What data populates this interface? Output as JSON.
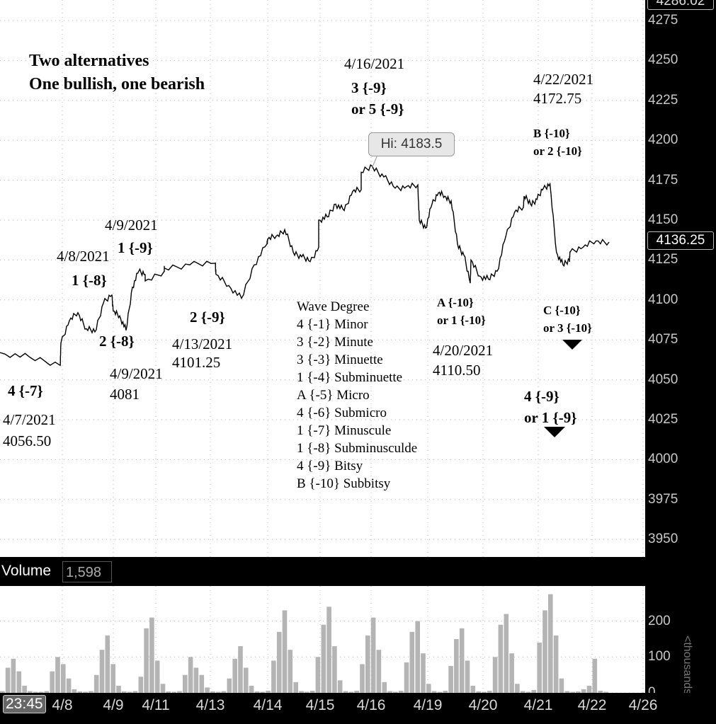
{
  "annotations": {
    "title_line1": "Two alternatives",
    "title_line2": "One bullish, one bearish",
    "top_date_4_16": "4/16/2021",
    "wave_3_9": "3 {-9}",
    "wave_or5_9": "or 5 {-9}",
    "date_4_22": "4/22/2021",
    "price_4_22": "4172.75",
    "wave_B_10": "B {-10}",
    "wave_or2_10": "or 2 {-10}",
    "date_4_9_top": "4/9/2021",
    "wave_1_9": "1 {-9}",
    "date_4_8": "4/8/2021",
    "wave_1_8": "1 {-8}",
    "wave_2_8": "2 {-8}",
    "wave_2_9": "2 {-9}",
    "date_4_13": "4/13/2021",
    "price_4_13": "4101.25",
    "date_4_9_low": "4/9/2021",
    "price_4_9_low": "4081",
    "wave_4_7": "4 {-7}",
    "date_4_7": "4/7/2021",
    "price_4_7": "4056.50",
    "wave_A_10": "A {-10}",
    "wave_or1_10": "or 1 {-10}",
    "date_4_20": "4/20/2021",
    "price_4_20": "4110.50",
    "wave_C_10": "C {-10}",
    "wave_or3_10": "or 3 {-10}",
    "wave_4_9": "4 {-9}",
    "wave_or1_9": "or 1 {-9}",
    "wave_degree_title": "Wave Degree",
    "wave_degree_rows": [
      "4 {-1} Minor",
      "3 {-2} Minute",
      "3 {-3} Minuette",
      "1 {-4} Subminuette",
      "A {-5} Micro",
      "4 {-6} Submicro",
      "1 {-7} Minuscule",
      "1 {-8} Subminusculde",
      "4 {-9} Bitsy",
      "B {-10} Subbitsy"
    ]
  },
  "hi_callout": "Hi: 4183.5",
  "last_price": "4136.25",
  "top_price": "4286.02",
  "volume_label": "Volume",
  "volume_value": "1,598",
  "volume_units": "<thousands>",
  "time_label": "23:45",
  "colors": {
    "price_line": "#000000",
    "volume_bar": "#b4b4b4",
    "background": "#ffffff",
    "marker": "#000000"
  },
  "chart_data": [
    {
      "type": "line",
      "title": "",
      "ylim": [
        3937,
        4286
      ],
      "y_ticks": [
        4275,
        4250,
        4225,
        4200,
        4175,
        4150,
        4125,
        4100,
        4075,
        4050,
        4025,
        4000,
        3975,
        3950
      ],
      "x_ticks": [
        "4/8",
        "4/9",
        "4/11",
        "4/13",
        "4/14",
        "4/15",
        "4/16",
        "4/19",
        "4/20",
        "4/21",
        "4/22",
        "4/26"
      ],
      "grid": true,
      "series": [
        {
          "x": [
            "4/7",
            "4/7",
            "4/7",
            "4/8",
            "4/8",
            "4/8",
            "4/8",
            "4/8",
            "4/8",
            "4/8",
            "4/9",
            "4/9",
            "4/9",
            "4/9",
            "4/9",
            "4/9",
            "4/11",
            "4/11",
            "4/12",
            "4/12",
            "4/12",
            "4/13",
            "4/13",
            "4/13",
            "4/13",
            "4/13",
            "4/14",
            "4/14",
            "4/14",
            "4/14",
            "4/14",
            "4/14",
            "4/14",
            "4/15",
            "4/15",
            "4/15",
            "4/15",
            "4/15",
            "4/15",
            "4/16",
            "4/16",
            "4/16",
            "4/16",
            "4/16",
            "4/16",
            "4/19",
            "4/19",
            "4/19",
            "4/19",
            "4/19",
            "4/19",
            "4/19",
            "4/19",
            "4/19",
            "4/20",
            "4/20",
            "4/20",
            "4/20",
            "4/20",
            "4/20",
            "4/20",
            "4/21",
            "4/21",
            "4/21",
            "4/21",
            "4/21",
            "4/21",
            "4/21",
            "4/21",
            "4/22",
            "4/22",
            "4/22",
            "4/22"
          ],
          "values": [
            4067,
            4064,
            4059,
            4073,
            4087,
            4092,
            4082,
            4080,
            4098,
            4103,
            4093,
            4090,
            4081,
            4108,
            4118,
            4116,
            4112,
            4118,
            4120,
            4122,
            4123,
            4116,
            4109,
            4101,
            4122,
            4135,
            4138,
            4140,
            4144,
            4130,
            4127,
            4124,
            4133,
            4150,
            4152,
            4160,
            4156,
            4168,
            4169,
            4180,
            4183.5,
            4177,
            4170,
            4171,
            4172,
            4150,
            4145,
            4160,
            4167,
            4165,
            4162,
            4135,
            4128,
            4110.5,
            4125,
            4115,
            4113,
            4118,
            4140,
            4155,
            4158,
            4165,
            4160,
            4163,
            4170,
            4172.75,
            4130,
            4122,
            4125,
            4130,
            4133,
            4137,
            4136.25
          ]
        }
      ],
      "annotations": [
        "Hi: 4183.5"
      ]
    },
    {
      "type": "bar",
      "title": "Volume",
      "ylabel": "<thousands>",
      "ylim": [
        0,
        290
      ],
      "y_ticks": [
        200,
        100,
        0
      ],
      "series": [
        {
          "name": "Volume",
          "values": [
            5,
            70,
            95,
            60,
            20,
            5,
            3,
            3,
            5,
            60,
            100,
            80,
            40,
            10,
            4,
            3,
            5,
            50,
            120,
            160,
            80,
            20,
            4,
            3,
            5,
            45,
            180,
            210,
            90,
            25,
            4,
            3,
            5,
            50,
            100,
            70,
            50,
            15,
            4,
            3,
            5,
            40,
            95,
            130,
            70,
            20,
            4,
            3,
            6,
            90,
            170,
            230,
            120,
            30,
            5,
            3,
            6,
            100,
            190,
            240,
            130,
            35,
            5,
            3,
            6,
            80,
            160,
            210,
            120,
            30,
            5,
            3,
            6,
            85,
            170,
            200,
            110,
            25,
            5,
            3,
            6,
            75,
            150,
            180,
            90,
            20,
            4,
            3,
            6,
            100,
            190,
            220,
            110,
            25,
            5,
            3,
            8,
            140,
            230,
            275,
            160,
            40,
            5,
            3,
            4,
            10,
            20,
            95,
            6,
            3
          ]
        }
      ]
    }
  ]
}
